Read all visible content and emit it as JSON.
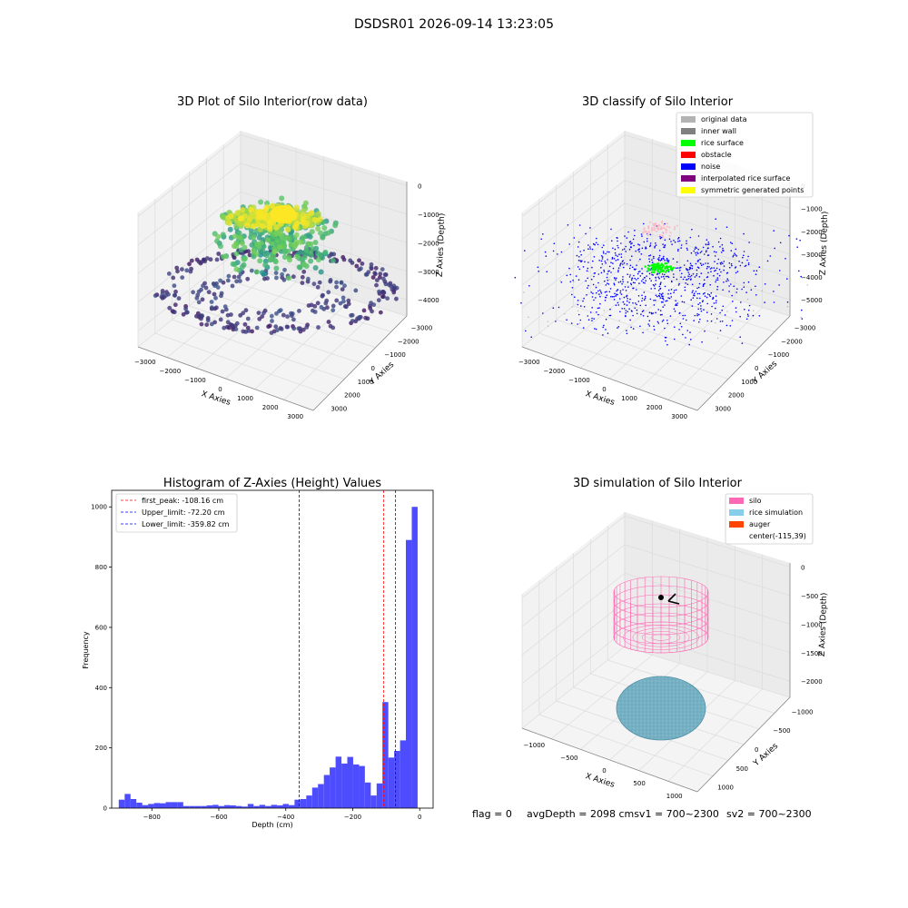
{
  "suptitle": "DSDSR01 2026-09-14 13:23:05",
  "footer": {
    "flag": "flag = 0",
    "avg": "avgDepth = 2098 cmsv1 = 700~2300",
    "sv2": "sv2 = 700~2300"
  },
  "colors": {
    "original": "#b3b3b3",
    "inner_wall": "#808080",
    "rice_surface": "#00ff00",
    "obstacle": "#ff0000",
    "noise": "#0000ff",
    "interp": "#800080",
    "sym": "#ffff00",
    "silo": "#ff69b4",
    "rice_sim": "#87ceeb",
    "auger": "#ff4500",
    "hist_bar": "#4d4dff"
  },
  "chart_data": [
    {
      "type": "scatter",
      "projection": "3d",
      "title": "3D Plot of Silo Interior(row data)",
      "xlabel": "X Axies",
      "ylabel": "Y Axies",
      "zlabel": "Z Axies (Depth)",
      "x_ticks": [
        "−3000",
        "−2000",
        "−1000",
        "0",
        "1000",
        "2000",
        "3000"
      ],
      "y_ticks": [
        "−3000",
        "−2000",
        "−1000",
        "0",
        "1000",
        "2000",
        "3000"
      ],
      "z_ticks": [
        "−4000",
        "−3000",
        "−2000",
        "−1000",
        "0"
      ],
      "colormap": "viridis (by depth)",
      "grid": true
    },
    {
      "type": "scatter",
      "projection": "3d",
      "title": "3D classify of Silo Interior",
      "xlabel": "X Axies",
      "ylabel": "Y Axies",
      "zlabel": "Z Axies (Depth)",
      "x_ticks": [
        "−3000",
        "−2000",
        "−1000",
        "0",
        "1000",
        "2000",
        "3000"
      ],
      "y_ticks": [
        "−3000",
        "−2000",
        "−1000",
        "0",
        "1000",
        "2000",
        "3000"
      ],
      "z_ticks": [
        "−5000",
        "−4000",
        "−3000",
        "−2000",
        "−1000",
        "0"
      ],
      "legend": [
        "original data",
        "inner wall",
        "rice surface",
        "obstacle",
        "noise",
        "interpolated rice surface",
        "symmetric generated points"
      ],
      "legend_position": "top-right",
      "grid": true
    },
    {
      "type": "bar",
      "title": "Histogram of Z-Axies (Height) Values",
      "xlabel": "Depth (cm)",
      "ylabel": "Frequency",
      "xlim": [
        -920,
        40
      ],
      "ylim": [
        0,
        1055
      ],
      "x_ticks": [
        -800,
        -600,
        -400,
        -200,
        0
      ],
      "y_ticks": [
        0,
        200,
        400,
        600,
        800,
        1000
      ],
      "bin_width": 17.5,
      "bins": [
        {
          "x": -890,
          "y": 28
        },
        {
          "x": -872.5,
          "y": 47
        },
        {
          "x": -855,
          "y": 30
        },
        {
          "x": -837.5,
          "y": 18
        },
        {
          "x": -820,
          "y": 10
        },
        {
          "x": -802.5,
          "y": 14
        },
        {
          "x": -785,
          "y": 17
        },
        {
          "x": -767.5,
          "y": 16
        },
        {
          "x": -750,
          "y": 20
        },
        {
          "x": -732.5,
          "y": 20
        },
        {
          "x": -715,
          "y": 20
        },
        {
          "x": -697.5,
          "y": 7
        },
        {
          "x": -680,
          "y": 7
        },
        {
          "x": -662.5,
          "y": 7
        },
        {
          "x": -645,
          "y": 7
        },
        {
          "x": -627.5,
          "y": 9
        },
        {
          "x": -610,
          "y": 11
        },
        {
          "x": -592.5,
          "y": 7
        },
        {
          "x": -575,
          "y": 10
        },
        {
          "x": -557.5,
          "y": 9
        },
        {
          "x": -540,
          "y": 7
        },
        {
          "x": -522.5,
          "y": 5
        },
        {
          "x": -505,
          "y": 14
        },
        {
          "x": -487.5,
          "y": 7
        },
        {
          "x": -470,
          "y": 11
        },
        {
          "x": -452.5,
          "y": 7
        },
        {
          "x": -435,
          "y": 11
        },
        {
          "x": -417.5,
          "y": 9
        },
        {
          "x": -400,
          "y": 14
        },
        {
          "x": -382.5,
          "y": 10
        },
        {
          "x": -365,
          "y": 28
        },
        {
          "x": -347.5,
          "y": 30
        },
        {
          "x": -330,
          "y": 42
        },
        {
          "x": -312.5,
          "y": 68
        },
        {
          "x": -295,
          "y": 80
        },
        {
          "x": -277.5,
          "y": 110
        },
        {
          "x": -260,
          "y": 135
        },
        {
          "x": -242.5,
          "y": 171
        },
        {
          "x": -225,
          "y": 148
        },
        {
          "x": -207.5,
          "y": 170
        },
        {
          "x": -190,
          "y": 145
        },
        {
          "x": -172.5,
          "y": 140
        },
        {
          "x": -155,
          "y": 85
        },
        {
          "x": -137.5,
          "y": 42
        },
        {
          "x": -120,
          "y": 82
        },
        {
          "x": -102.5,
          "y": 352
        },
        {
          "x": -85,
          "y": 168
        },
        {
          "x": -67.5,
          "y": 190
        },
        {
          "x": -50,
          "y": 225
        },
        {
          "x": -32.5,
          "y": 890
        },
        {
          "x": -15,
          "y": 1000
        }
      ],
      "vlines": [
        {
          "label": "first_peak: -108.16 cm",
          "x": -108.16,
          "color": "#ff0000"
        },
        {
          "label": "Upper_limit: -72.20 cm",
          "x": -72.2,
          "color": "#0000ff"
        },
        {
          "label": "Lower_limit: -359.82 cm",
          "x": -359.82,
          "color": "#0000ff"
        }
      ],
      "legend_position": "top-left"
    },
    {
      "type": "other",
      "projection": "3d",
      "title": "3D simulation of Silo Interior",
      "xlabel": "X Axies",
      "ylabel": "Y Axies",
      "zlabel": "Z Axies (Depth)",
      "x_ticks": [
        "−1000",
        "−500",
        "0",
        "500",
        "1000"
      ],
      "y_ticks": [
        "−1000",
        "−500",
        "0",
        "500",
        "1000"
      ],
      "z_ticks": [
        "−2000",
        "−1500",
        "−1000",
        "−500",
        "0"
      ],
      "legend": [
        "silo",
        "rice simulation",
        "auger",
        "center(-115,39)"
      ],
      "legend_position": "top-right",
      "grid": true
    }
  ]
}
